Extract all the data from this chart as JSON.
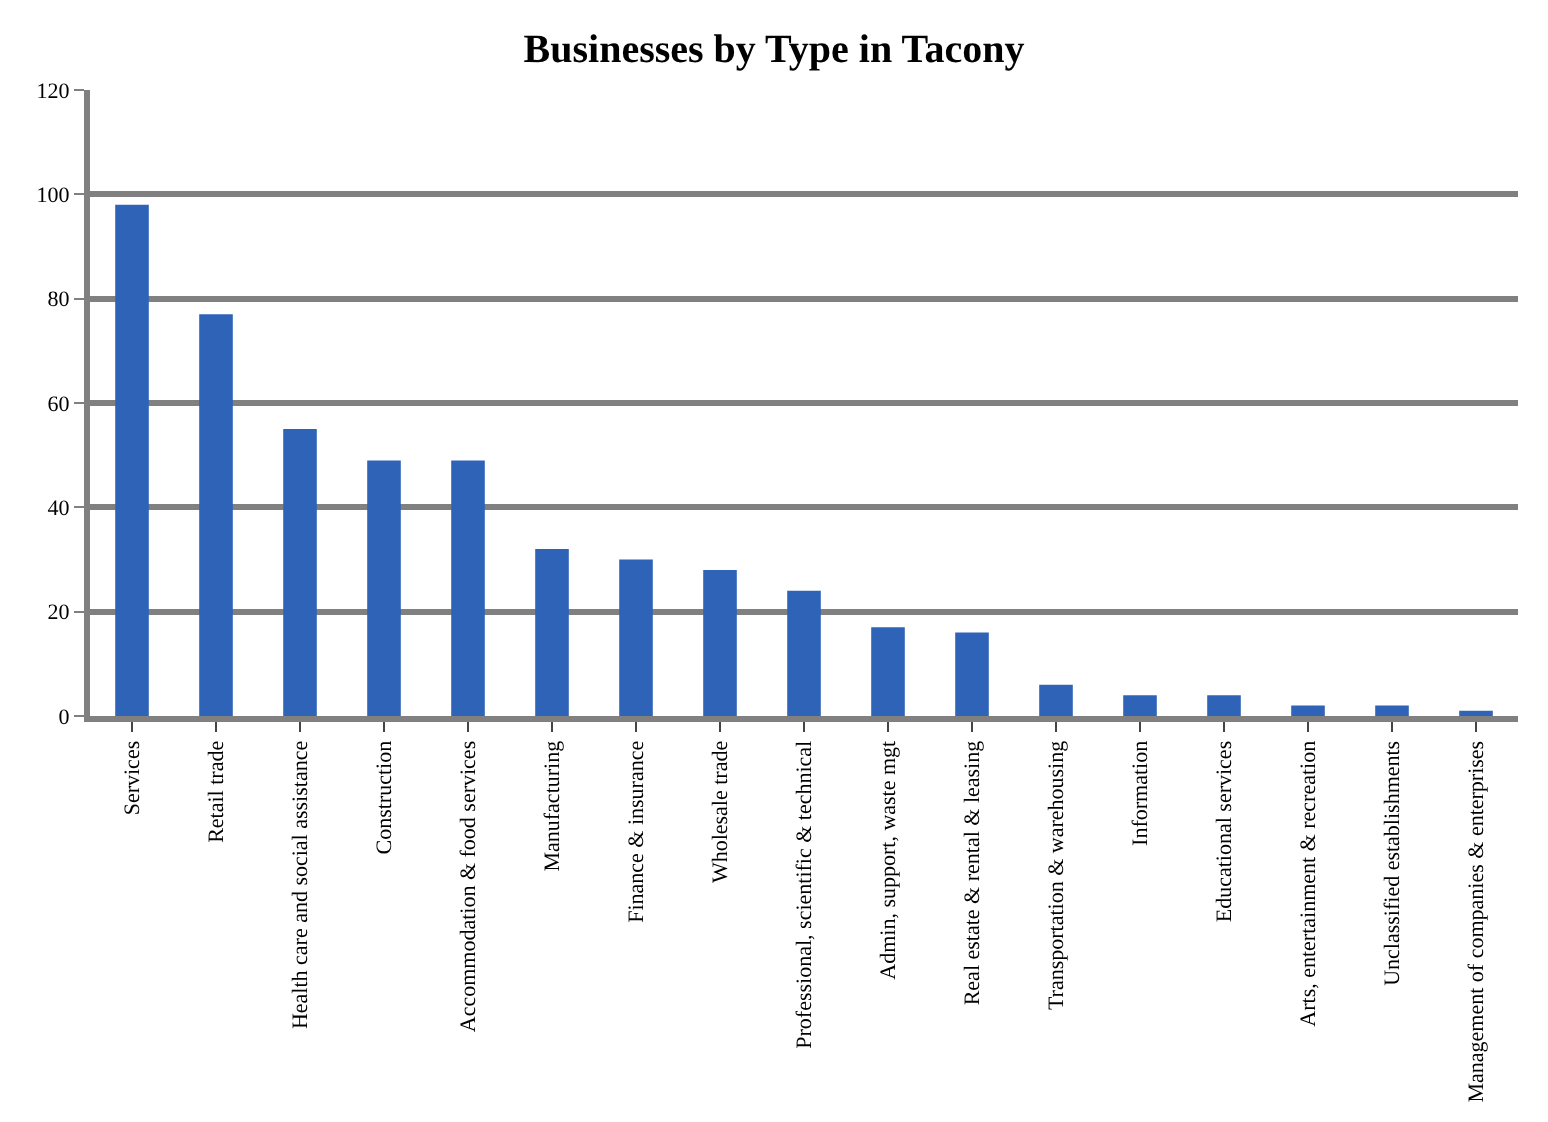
{
  "chart_data": {
    "type": "bar",
    "title": "Businesses by Type in Tacony",
    "categories": [
      "Services",
      "Retail trade",
      "Health care and social assistance",
      "Construction",
      "Accommodation & food services",
      "Manufacturing",
      "Finance & insurance",
      "Wholesale trade",
      "Professional, scientific & technical",
      "Admin, support, waste mgt",
      "Real estate & rental & leasing",
      "Transportation & warehousing",
      "Information",
      "Educational services",
      "Arts, entertainment & recreation",
      "Unclassified establishments",
      "Management of companies & enterprises"
    ],
    "values": [
      98,
      77,
      55,
      49,
      49,
      32,
      30,
      28,
      24,
      17,
      16,
      6,
      4,
      4,
      2,
      2,
      1
    ],
    "color": "#2e63b8",
    "ylim": [
      0,
      120
    ],
    "yticks": [
      0,
      20,
      40,
      60,
      80,
      100,
      120
    ],
    "grid": "y",
    "legend": false
  }
}
